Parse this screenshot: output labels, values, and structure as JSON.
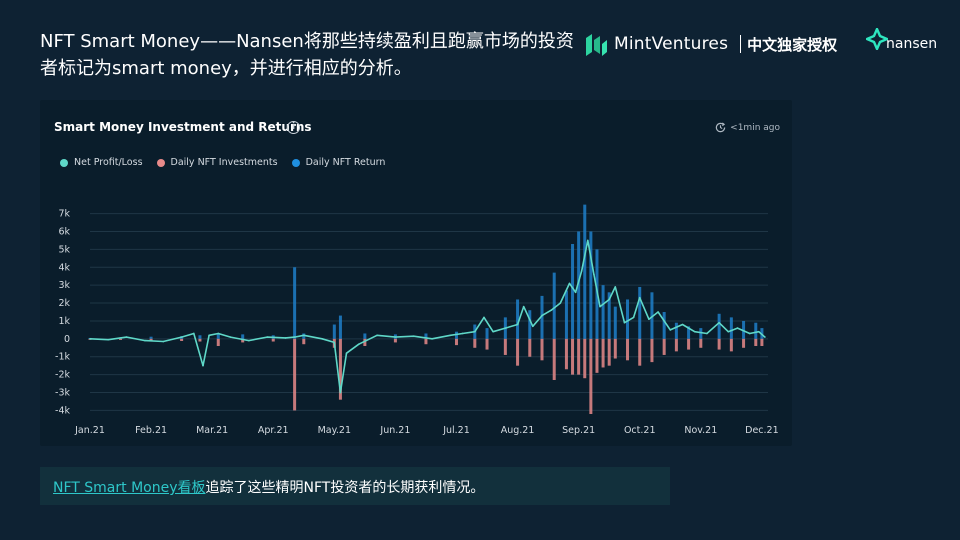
{
  "slide": {
    "title": "NFT Smart Money——Nansen将那些持续盈利且跑赢市场的投资者标记为smart money，并进行相应的分析。"
  },
  "brand": {
    "mint_ventures": "MintVentures",
    "exclusive": "中文独家授权",
    "nansen": "nansen"
  },
  "panel": {
    "title": "Smart Money Investment and Returns",
    "info_icon": "i",
    "updated": "<1min ago"
  },
  "caption": {
    "link_text": "NFT Smart Money看板",
    "text": "追踪了这些精明NFT投资者的长期获利情况。"
  },
  "colors": {
    "background": "#0e2233",
    "panel": "#0a1d2b",
    "profit_line": "#5fd8c8",
    "investment": "#e88a8a",
    "return": "#1f7fc9"
  },
  "chart_data": {
    "type": "bar",
    "title": "Smart Money Investment and Returns",
    "legend": [
      "Net Profit/Loss",
      "Daily NFT Investments",
      "Daily NFT Return"
    ],
    "legend_position": "top-left",
    "grid": true,
    "x_tick_labels": [
      "Jan.21",
      "Feb.21",
      "Mar.21",
      "Apr.21",
      "May.21",
      "Jun.21",
      "Jul.21",
      "Aug.21",
      "Sep.21",
      "Oct.21",
      "Nov.21",
      "Dec.21"
    ],
    "y_tick_labels": [
      "7k",
      "6k",
      "5k",
      "4k",
      "3k",
      "2k",
      "1k",
      "0",
      "-1k",
      "-2k",
      "-3k",
      "-4k"
    ],
    "y_ticks": [
      7000,
      6000,
      5000,
      4000,
      3000,
      2000,
      1000,
      0,
      -1000,
      -2000,
      -3000,
      -4000
    ],
    "ylim": [
      -4200,
      7200
    ],
    "x_unit": "month index (0 = Jan.21)",
    "x_range": [
      0,
      11.1
    ],
    "series": [
      {
        "name": "Daily NFT Return",
        "type": "bar",
        "x": [
          0.0,
          0.5,
          1.0,
          1.5,
          1.8,
          2.1,
          2.5,
          3.0,
          3.35,
          3.5,
          4.0,
          4.1,
          4.5,
          5.0,
          5.5,
          6.0,
          6.3,
          6.5,
          6.8,
          7.0,
          7.2,
          7.4,
          7.6,
          7.8,
          7.9,
          8.0,
          8.1,
          8.2,
          8.3,
          8.4,
          8.5,
          8.6,
          8.8,
          9.0,
          9.2,
          9.4,
          9.6,
          9.8,
          10.0,
          10.3,
          10.5,
          10.7,
          10.9,
          11.0
        ],
        "values": [
          50,
          80,
          120,
          150,
          200,
          300,
          250,
          200,
          4000,
          300,
          800,
          1300,
          300,
          250,
          300,
          400,
          800,
          600,
          1200,
          2200,
          1600,
          2400,
          3700,
          2700,
          5300,
          6000,
          7500,
          6000,
          5000,
          3000,
          2600,
          1800,
          2200,
          2900,
          2600,
          1500,
          900,
          700,
          600,
          1400,
          1200,
          1000,
          900,
          600
        ]
      },
      {
        "name": "Daily NFT Investments",
        "type": "bar",
        "x": [
          0.0,
          0.5,
          1.0,
          1.5,
          1.8,
          2.1,
          2.5,
          3.0,
          3.35,
          3.5,
          4.0,
          4.1,
          4.5,
          5.0,
          5.5,
          6.0,
          6.3,
          6.5,
          6.8,
          7.0,
          7.2,
          7.4,
          7.6,
          7.8,
          7.9,
          8.0,
          8.1,
          8.2,
          8.3,
          8.4,
          8.5,
          8.6,
          8.8,
          9.0,
          9.2,
          9.4,
          9.6,
          9.8,
          10.0,
          10.3,
          10.5,
          10.7,
          10.9,
          11.0
        ],
        "values": [
          -40,
          -60,
          -100,
          -120,
          -150,
          -400,
          -200,
          -150,
          -4000,
          -300,
          -500,
          -3400,
          -400,
          -200,
          -300,
          -350,
          -500,
          -600,
          -900,
          -1500,
          -1000,
          -1200,
          -2300,
          -1700,
          -2000,
          -2000,
          -2200,
          -4200,
          -1900,
          -1600,
          -1500,
          -1100,
          -1200,
          -1500,
          -1300,
          -900,
          -700,
          -600,
          -500,
          -600,
          -700,
          -500,
          -400,
          -400
        ]
      },
      {
        "name": "Net Profit/Loss",
        "type": "line",
        "x": [
          0.0,
          0.3,
          0.6,
          0.9,
          1.2,
          1.5,
          1.7,
          1.85,
          1.95,
          2.1,
          2.3,
          2.6,
          2.9,
          3.2,
          3.35,
          3.5,
          3.8,
          4.0,
          4.1,
          4.2,
          4.4,
          4.7,
          5.0,
          5.3,
          5.6,
          5.9,
          6.1,
          6.3,
          6.45,
          6.6,
          6.8,
          7.0,
          7.1,
          7.25,
          7.4,
          7.55,
          7.7,
          7.85,
          7.95,
          8.05,
          8.15,
          8.25,
          8.35,
          8.5,
          8.6,
          8.75,
          8.9,
          9.0,
          9.15,
          9.3,
          9.5,
          9.7,
          9.9,
          10.1,
          10.3,
          10.45,
          10.6,
          10.8,
          10.95,
          11.05
        ],
        "values": [
          0,
          -50,
          100,
          -100,
          -150,
          100,
          300,
          -1500,
          200,
          300,
          100,
          -100,
          100,
          50,
          100,
          200,
          0,
          -200,
          -3000,
          -800,
          -300,
          200,
          100,
          150,
          0,
          200,
          300,
          400,
          1200,
          400,
          600,
          800,
          1800,
          700,
          1300,
          1600,
          2000,
          3100,
          2600,
          3800,
          5500,
          3600,
          1800,
          2200,
          2900,
          900,
          1200,
          2300,
          1100,
          1500,
          500,
          800,
          400,
          300,
          900,
          400,
          600,
          300,
          400,
          100
        ]
      }
    ]
  }
}
